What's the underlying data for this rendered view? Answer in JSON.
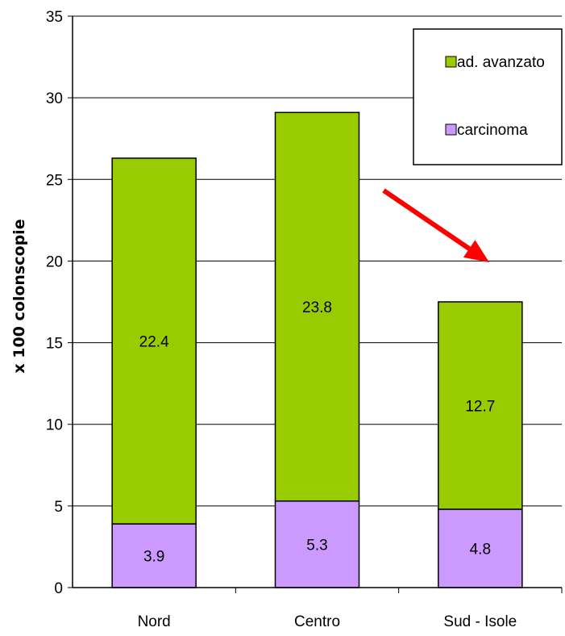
{
  "chart_data": {
    "type": "bar",
    "stacked": true,
    "categories": [
      "Nord",
      "Centro",
      "Sud - Isole"
    ],
    "series": [
      {
        "name": "carcinoma",
        "values": [
          3.9,
          5.3,
          4.8
        ],
        "color": "#cc99ff"
      },
      {
        "name": "ad. avanzato",
        "values": [
          22.4,
          23.8,
          12.7
        ],
        "color": "#99cc00"
      }
    ],
    "ylabel": "x 100 colonscopie",
    "ylim": [
      0,
      35
    ],
    "yticks": [
      0,
      5,
      10,
      15,
      20,
      25,
      30,
      35
    ],
    "grid": true,
    "legend_position": "top-right",
    "legend_order": [
      "ad. avanzato",
      "carcinoma"
    ],
    "annotation": {
      "type": "arrow",
      "color": "#ff0000",
      "direction": "down-right",
      "between": [
        "Centro",
        "Sud - Isole"
      ]
    }
  }
}
